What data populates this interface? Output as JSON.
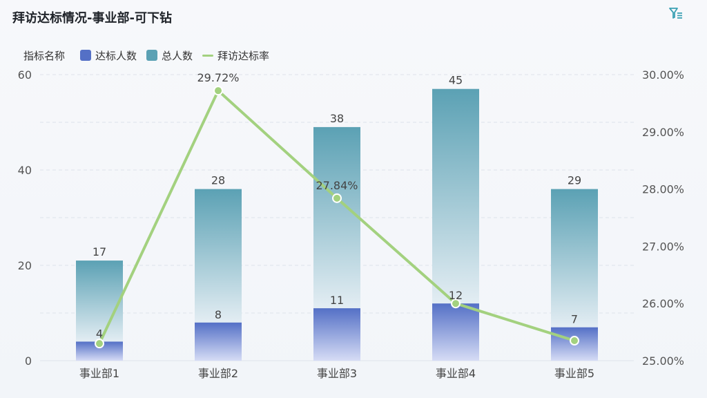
{
  "header": {
    "title": "拜访达标情况-事业部-可下钻",
    "filter_icon": "filter-icon"
  },
  "legend": {
    "title": "指标名称",
    "items": [
      {
        "label": "达标人数",
        "color": "#5470c6",
        "kind": "bar"
      },
      {
        "label": "总人数",
        "color": "#5ba1b4",
        "kind": "bar"
      },
      {
        "label": "拜访达标率",
        "color": "#a3d17f",
        "kind": "line"
      }
    ]
  },
  "chart_data": {
    "type": "bar",
    "stacked": true,
    "categories": [
      "事业部1",
      "事业部2",
      "事业部3",
      "事业部4",
      "事业部5"
    ],
    "series": [
      {
        "name": "达标人数",
        "values": [
          4,
          8,
          11,
          12,
          7
        ],
        "axis": "left",
        "color": "#5470c6"
      },
      {
        "name": "总人数",
        "values": [
          17,
          28,
          38,
          45,
          29
        ],
        "axis": "left",
        "color": "#5ba1b4"
      },
      {
        "name": "拜访达标率",
        "type": "line",
        "axis": "right",
        "values": [
          25.3,
          29.72,
          27.84,
          26.0,
          25.35
        ],
        "point_labels": [
          "",
          "29.72%",
          "27.84%",
          "",
          ""
        ],
        "color": "#a3d17f"
      }
    ],
    "ylim": [
      0,
      60
    ],
    "y_ticks": [
      0,
      20,
      40,
      60
    ],
    "y2lim": [
      25.0,
      30.0
    ],
    "y2_ticks": [
      "25.00%",
      "26.00%",
      "27.00%",
      "28.00%",
      "29.00%",
      "30.00%"
    ],
    "grid": true,
    "legend_position": "top-left"
  }
}
